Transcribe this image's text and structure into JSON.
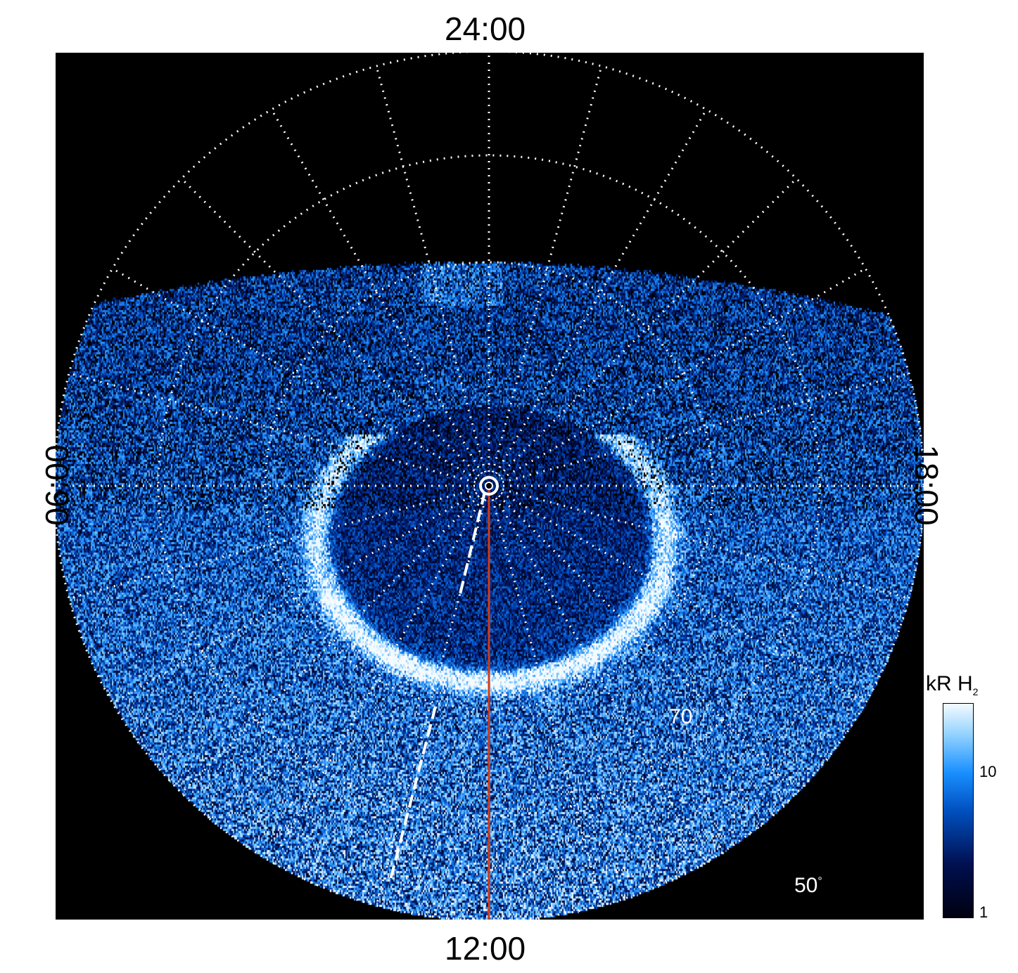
{
  "local_time_labels": {
    "top": "24:00",
    "bottom": "12:00",
    "left": "06:00",
    "right": "18:00"
  },
  "latitude_labels": {
    "inner": "70",
    "outer": "50",
    "unit": "°"
  },
  "colorbar": {
    "title_main": "kR H",
    "title_sub": "2",
    "ticks": [
      "10",
      "1"
    ],
    "scale": "log",
    "range": [
      1,
      30
    ]
  },
  "colors": {
    "background": "#000000",
    "grid": "#ffffff",
    "noon_line": "#d03a1a",
    "emission_low": "#001050",
    "emission_mid": "#1a90ff",
    "emission_high": "#f4fbff"
  }
}
